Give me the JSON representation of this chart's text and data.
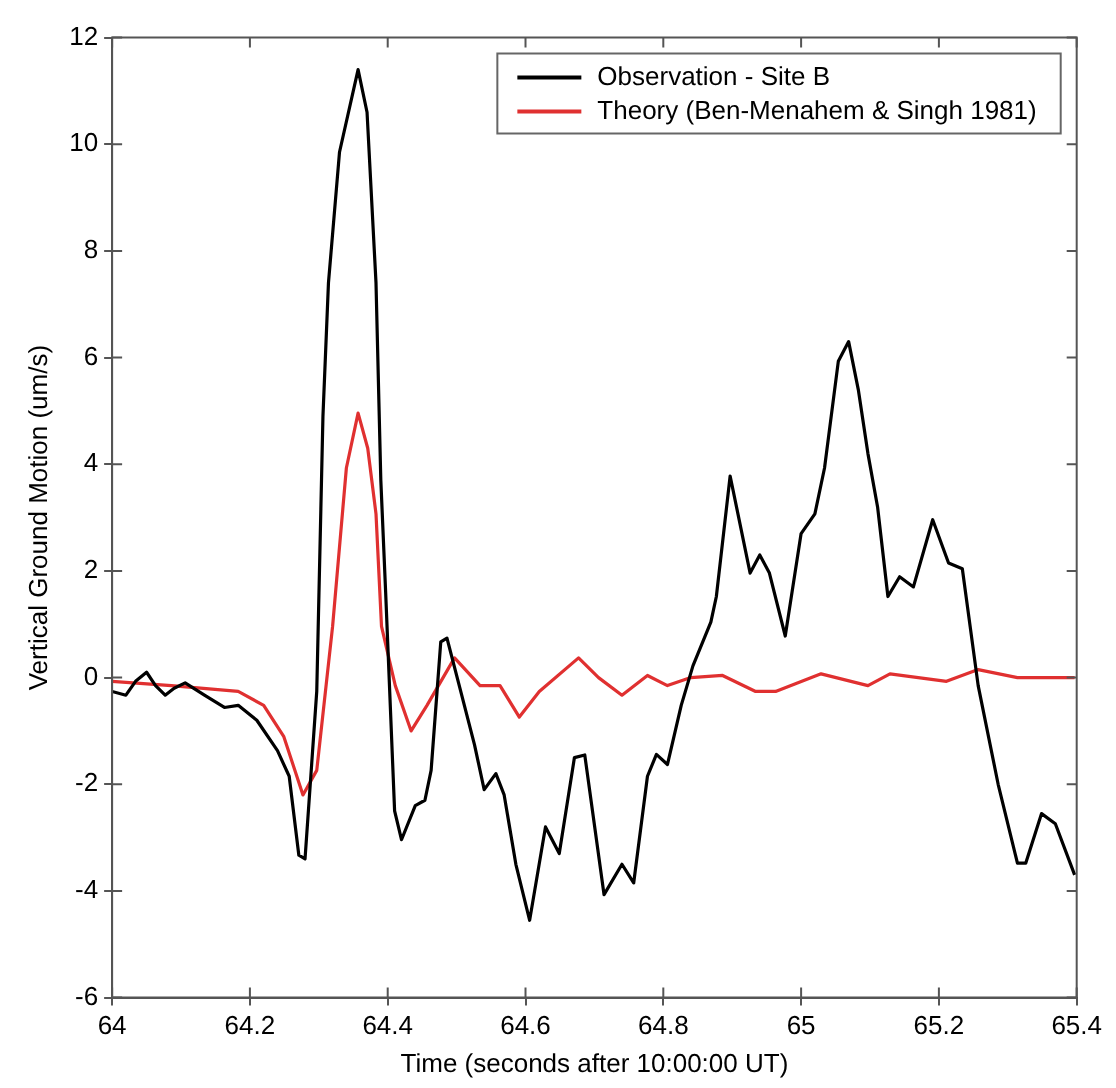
{
  "chart_data": {
    "type": "line",
    "xlabel": "Time (seconds after 10:00:00 UT)",
    "ylabel": "Vertical Ground Motion (um/s)",
    "xlim": [
      64,
      65.4
    ],
    "xticks": [
      64,
      64.2,
      64.4,
      64.6,
      64.8,
      65,
      65.2,
      65.4
    ],
    "ylim": [
      -6,
      12
    ],
    "yticks": [
      -6,
      -4,
      -2,
      0,
      2,
      4,
      6,
      8,
      10,
      12
    ],
    "grid": false,
    "legend": "top right",
    "marker": "none",
    "line_style": "solid",
    "series": [
      {
        "name": "Observation - Site B",
        "color": "#000000",
        "x": [
          64.0,
          64.02,
          64.034,
          64.05,
          64.063,
          64.077,
          64.09,
          64.106,
          64.134,
          64.163,
          64.183,
          64.21,
          64.24,
          64.257,
          64.271,
          64.28,
          64.297,
          64.306,
          64.314,
          64.33,
          64.357,
          64.37,
          64.383,
          64.39,
          64.397,
          64.41,
          64.42,
          64.44,
          64.454,
          64.463,
          64.477,
          64.486,
          64.506,
          64.526,
          64.54,
          64.557,
          64.569,
          64.586,
          64.606,
          64.629,
          64.649,
          64.671,
          64.686,
          64.714,
          64.74,
          64.757,
          64.777,
          64.79,
          64.806,
          64.826,
          64.843,
          64.869,
          64.877,
          64.897,
          64.926,
          64.94,
          64.954,
          64.977,
          65.0,
          65.02,
          65.034,
          65.054,
          65.069,
          65.083,
          65.097,
          65.111,
          65.126,
          65.143,
          65.163,
          65.191,
          65.214,
          65.234,
          65.257,
          65.286,
          65.314,
          65.326,
          65.349,
          65.369,
          65.397
        ],
        "values": [
          -0.26,
          -0.33,
          -0.07,
          0.1,
          -0.15,
          -0.33,
          -0.2,
          -0.1,
          -0.33,
          -0.56,
          -0.52,
          -0.8,
          -1.37,
          -1.85,
          -3.33,
          -3.4,
          -0.26,
          4.9,
          7.4,
          9.85,
          11.4,
          10.6,
          7.4,
          3.7,
          1.6,
          -2.5,
          -3.04,
          -2.4,
          -2.3,
          -1.74,
          0.67,
          0.74,
          -0.26,
          -1.26,
          -2.1,
          -1.8,
          -2.2,
          -3.5,
          -4.55,
          -2.8,
          -3.3,
          -1.5,
          -1.45,
          -4.07,
          -3.5,
          -3.85,
          -1.85,
          -1.44,
          -1.63,
          -0.52,
          0.22,
          1.04,
          1.52,
          3.78,
          1.96,
          2.3,
          1.96,
          0.78,
          2.7,
          3.07,
          3.93,
          5.93,
          6.3,
          5.4,
          4.2,
          3.2,
          1.52,
          1.89,
          1.7,
          2.96,
          2.15,
          2.04,
          -0.15,
          -2.0,
          -3.48,
          -3.48,
          -2.55,
          -2.74,
          -3.7
        ]
      },
      {
        "name": "Theory (Ben-Menahem & Singh 1981)",
        "color": "#e03030",
        "x": [
          64.0,
          64.086,
          64.183,
          64.22,
          64.249,
          64.277,
          64.297,
          64.32,
          64.34,
          64.357,
          64.371,
          64.383,
          64.391,
          64.411,
          64.434,
          64.457,
          64.497,
          64.534,
          64.563,
          64.591,
          64.62,
          64.677,
          64.706,
          64.74,
          64.777,
          64.806,
          64.84,
          64.886,
          64.934,
          64.963,
          65.029,
          65.097,
          65.129,
          65.211,
          65.257,
          65.314,
          65.397
        ],
        "values": [
          -0.07,
          -0.15,
          -0.26,
          -0.52,
          -1.1,
          -2.2,
          -1.74,
          0.96,
          3.93,
          4.96,
          4.3,
          3.07,
          0.96,
          -0.15,
          -1.0,
          -0.52,
          0.37,
          -0.15,
          -0.15,
          -0.74,
          -0.26,
          0.37,
          0.0,
          -0.33,
          0.04,
          -0.15,
          0.0,
          0.04,
          -0.26,
          -0.26,
          0.07,
          -0.15,
          0.07,
          -0.07,
          0.15,
          0.0,
          0.0
        ]
      }
    ]
  }
}
